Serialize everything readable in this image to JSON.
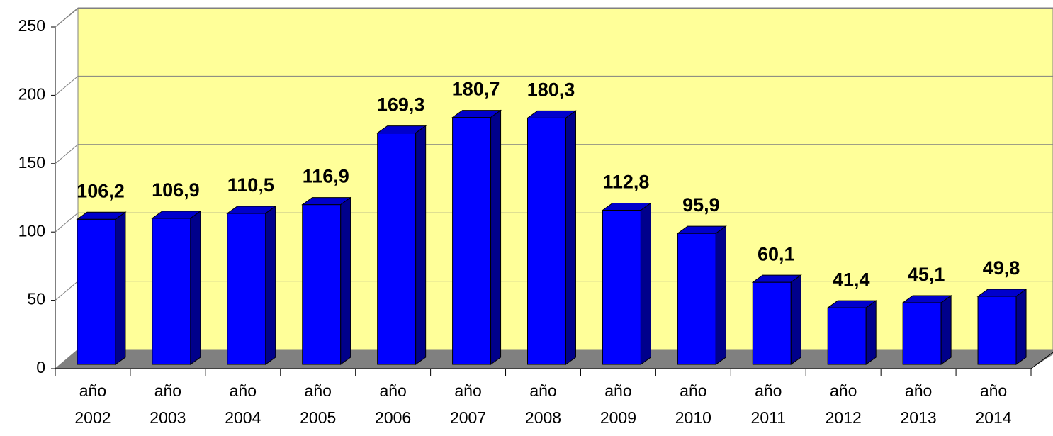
{
  "chart_data": {
    "type": "bar3d",
    "categories": [
      "año 2002",
      "año 2003",
      "año 2004",
      "año 2005",
      "año 2006",
      "año 2007",
      "año 2008",
      "año 2009",
      "año 2010",
      "año 2011",
      "año 2012",
      "año 2013",
      "año 2014"
    ],
    "values": [
      106.2,
      106.9,
      110.5,
      116.9,
      169.3,
      180.7,
      180.3,
      112.8,
      95.9,
      60.1,
      41.4,
      45.1,
      49.8
    ],
    "value_labels": [
      "106,2",
      "106,9",
      "110,5",
      "116,9",
      "169,3",
      "180,7",
      "180,3",
      "112,8",
      "95,9",
      "60,1",
      "41,4",
      "45,1",
      "49,8"
    ],
    "color": "#0000ff",
    "ylim": [
      0,
      250
    ],
    "yticks": [
      0,
      50,
      100,
      150,
      200,
      250
    ],
    "grid": true
  }
}
